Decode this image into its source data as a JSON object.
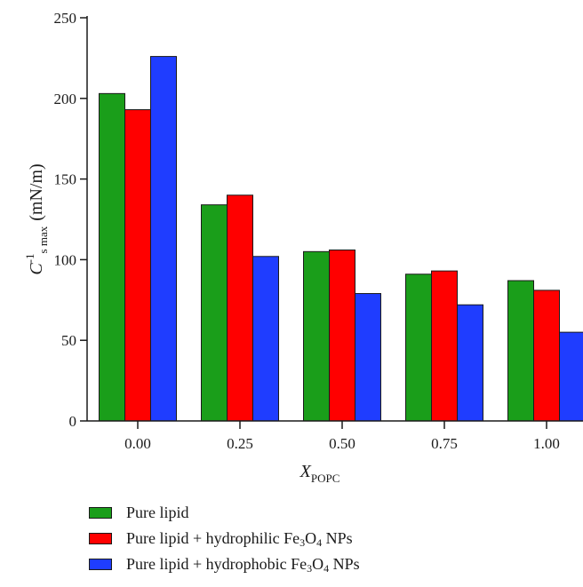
{
  "chart_data": {
    "type": "bar",
    "categories": [
      "0.00",
      "0.25",
      "0.50",
      "0.75",
      "1.00"
    ],
    "series": [
      {
        "name": "Pure lipid",
        "color": "#1a9e1a",
        "values": [
          203,
          134,
          105,
          91,
          87
        ]
      },
      {
        "name": "Pure lipid + hydrophilic Fe3O4 NPs",
        "color": "#ff0000",
        "values": [
          193,
          140,
          106,
          93,
          81
        ]
      },
      {
        "name": "Pure lipid + hydrophobic Fe3O4 NPs",
        "color": "#1f3dff",
        "values": [
          226,
          102,
          79,
          72,
          55
        ]
      }
    ],
    "ylim": [
      0,
      250
    ],
    "yticks": [
      0,
      50,
      100,
      150,
      200,
      250
    ],
    "ylabel": {
      "main": "C",
      "sup": "-1",
      "sub": "s max",
      "unit": "(mN/m)"
    },
    "xlabel": {
      "main": "X",
      "sub": "POPC"
    },
    "grid": false,
    "legend_position": "bottom-left"
  },
  "legend": [
    {
      "pre": "Pure lipid",
      "sub1": "",
      "mid": "",
      "sub2": "",
      "post": ""
    },
    {
      "pre": "Pure lipid + hydrophilic Fe",
      "sub1": "3",
      "mid": "O",
      "sub2": "4",
      "post": " NPs"
    },
    {
      "pre": "Pure lipid + hydrophobic Fe",
      "sub1": "3",
      "mid": "O",
      "sub2": "4",
      "post": " NPs"
    }
  ]
}
